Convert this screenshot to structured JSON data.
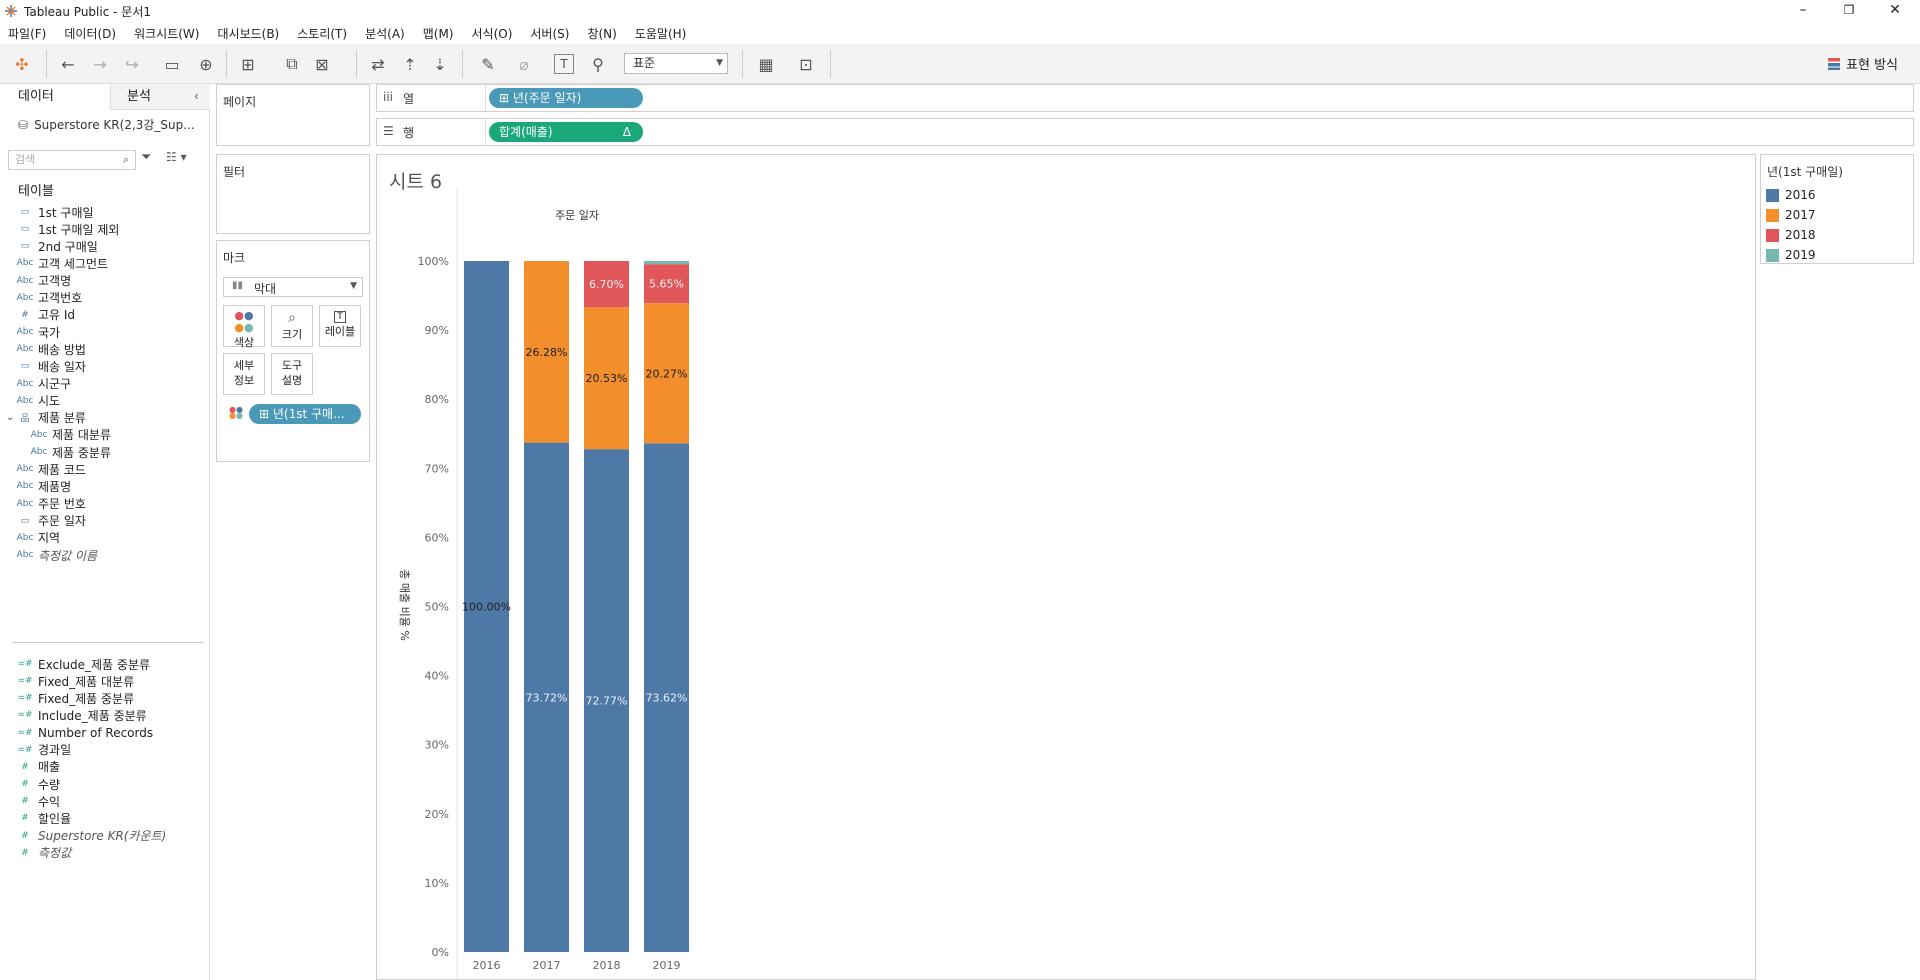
{
  "window": {
    "title": "Tableau Public - 문서1"
  },
  "menu": [
    "파일(F)",
    "데이터(D)",
    "워크시트(W)",
    "대시보드(B)",
    "스토리(T)",
    "분석(A)",
    "맵(M)",
    "서식(O)",
    "서버(S)",
    "창(N)",
    "도움말(H)"
  ],
  "toolbar": {
    "fit_value": "표준",
    "show_me_label": "표현 방식"
  },
  "left_panel": {
    "tabs": [
      "데이터",
      "분석"
    ],
    "datasource": "Superstore KR(2,3강_Sup...",
    "search_placeholder": "검색",
    "tables_label": "테이블",
    "dimensions": [
      {
        "icon": "date-calc",
        "name": "1st 구매일"
      },
      {
        "icon": "date-calc",
        "name": "1st 구매일 제외"
      },
      {
        "icon": "date-calc",
        "name": "2nd 구매일"
      },
      {
        "icon": "Abc",
        "name": "고객 세그먼트"
      },
      {
        "icon": "Abc",
        "name": "고객명"
      },
      {
        "icon": "Abc",
        "name": "고객번호"
      },
      {
        "icon": "#",
        "name": "고유 Id"
      },
      {
        "icon": "Abc",
        "name": "국가"
      },
      {
        "icon": "Abc",
        "name": "배송 방법"
      },
      {
        "icon": "date",
        "name": "배송 일자"
      },
      {
        "icon": "Abc",
        "name": "시군구"
      },
      {
        "icon": "Abc",
        "name": "시도"
      },
      {
        "icon": "hierarchy",
        "name": "제품 분류"
      },
      {
        "icon": "Abc",
        "name": "제품 대분류",
        "indent": true
      },
      {
        "icon": "Abc",
        "name": "제품 중분류",
        "indent": true
      },
      {
        "icon": "Abc",
        "name": "제품 코드"
      },
      {
        "icon": "Abc",
        "name": "제품명"
      },
      {
        "icon": "Abc",
        "name": "주문 번호"
      },
      {
        "icon": "date",
        "name": "주문 일자"
      },
      {
        "icon": "Abc",
        "name": "지역"
      },
      {
        "icon": "Abc",
        "name": "측정값 이름",
        "italic": true
      }
    ],
    "measures": [
      {
        "icon": "=#",
        "name": "Exclude_제품 중분류"
      },
      {
        "icon": "=#",
        "name": "Fixed_제품 대분류"
      },
      {
        "icon": "=#",
        "name": "Fixed_제품 중분류"
      },
      {
        "icon": "=#",
        "name": "Include_제품 중분류"
      },
      {
        "icon": "=#",
        "name": "Number of Records"
      },
      {
        "icon": "=#",
        "name": "경과일"
      },
      {
        "icon": "#",
        "name": "매출"
      },
      {
        "icon": "#",
        "name": "수량"
      },
      {
        "icon": "#",
        "name": "수익"
      },
      {
        "icon": "#",
        "name": "할인율"
      },
      {
        "icon": "#",
        "name": "Superstore KR(카운트)",
        "italic": true
      },
      {
        "icon": "#",
        "name": "측정값",
        "italic": true
      }
    ]
  },
  "cards": {
    "pages_label": "페이지",
    "filters_label": "필터",
    "marks_label": "마크",
    "mark_type": "막대",
    "mark_buttons": [
      {
        "key": "color",
        "label": "색상"
      },
      {
        "key": "size",
        "label": "크기"
      },
      {
        "key": "label",
        "label": "레이블"
      },
      {
        "key": "detail",
        "label": "세부\n정보"
      },
      {
        "key": "tooltip",
        "label": "도구\n설명"
      }
    ],
    "color_pill": "년(1st 구매..."
  },
  "shelves": {
    "columns_label": "열",
    "rows_label": "행",
    "columns_pill": "년(주문 일자)",
    "rows_pill": "합계(매출)",
    "rows_pill_delta": "Δ"
  },
  "sheet": {
    "title": "시트 6"
  },
  "legend": {
    "title": "년(1st 구매일)"
  },
  "colors": {
    "2016": "#4e79a7",
    "2017": "#f28e2b",
    "2018": "#e15759",
    "2019": "#76b7b2",
    "pill_blue": "#4a99b8",
    "pill_green": "#1aa779"
  },
  "chart_data": {
    "type": "bar",
    "stacked": true,
    "title": "주문 일자",
    "ylabel": "총 매출 비율 %",
    "categories": [
      "2016",
      "2017",
      "2018",
      "2019"
    ],
    "ylim": [
      0,
      100
    ],
    "yticks": [
      "0%",
      "10%",
      "20%",
      "30%",
      "40%",
      "50%",
      "60%",
      "70%",
      "80%",
      "90%",
      "100%"
    ],
    "series": [
      {
        "name": "2016",
        "values": [
          100.0,
          73.72,
          72.77,
          73.62
        ],
        "labels": [
          "100.00%",
          "73.72%",
          "72.77%",
          "73.62%"
        ]
      },
      {
        "name": "2017",
        "values": [
          0,
          26.28,
          20.53,
          20.27
        ],
        "labels": [
          "",
          "26.28%",
          "20.53%",
          "20.27%"
        ]
      },
      {
        "name": "2018",
        "values": [
          0,
          0,
          6.7,
          5.65
        ],
        "labels": [
          "",
          "",
          "6.70%",
          "5.65%"
        ]
      },
      {
        "name": "2019",
        "values": [
          0,
          0,
          0,
          0.46
        ],
        "labels": [
          "",
          "",
          "",
          ""
        ]
      }
    ]
  }
}
